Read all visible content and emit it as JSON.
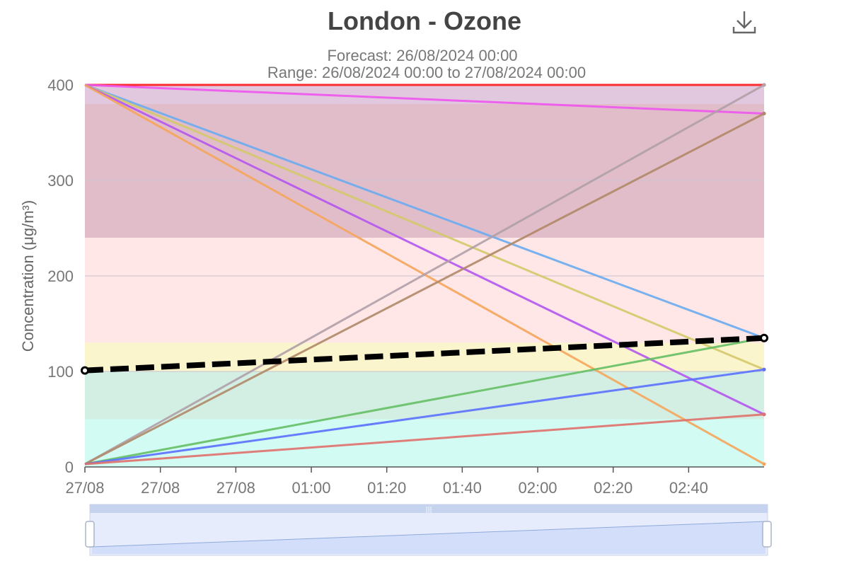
{
  "chart_data": {
    "type": "line",
    "title": "London - Ozone",
    "subtitle_lines": [
      "Forecast: 26/08/2024 00:00",
      "Range: 26/08/2024 00:00 to 27/08/2024 00:00"
    ],
    "ylabel": "Concentration (μg/m³)",
    "xlabel": "",
    "ylim": [
      0,
      400
    ],
    "yticks": [
      0,
      100,
      200,
      300,
      400
    ],
    "xticks": [
      "27/08",
      "27/08",
      "27/08",
      "01:00",
      "01:20",
      "01:40",
      "02:00",
      "02:20",
      "02:40"
    ],
    "x_range": [
      "27/08",
      "03:00"
    ],
    "grid": true,
    "legend": "none",
    "bands": [
      {
        "from": 0,
        "to": 50,
        "color": "#d2fbf3"
      },
      {
        "from": 50,
        "to": 100,
        "color": "#d3efe3"
      },
      {
        "from": 100,
        "to": 130,
        "color": "#fbf5cd"
      },
      {
        "from": 130,
        "to": 240,
        "color": "#ffe7e7"
      },
      {
        "from": 240,
        "to": 380,
        "color": "#e1bdca"
      },
      {
        "from": 380,
        "to": 400,
        "color": "#e2c8de"
      }
    ],
    "series": [
      {
        "values": [
          400,
          400
        ],
        "color": "#ff1a1a"
      },
      {
        "values": [
          400,
          370
        ],
        "color": "#ee55ee"
      },
      {
        "values": [
          400,
          135
        ],
        "color": "#6aabf0"
      },
      {
        "values": [
          400,
          102
        ],
        "color": "#d4c96a"
      },
      {
        "values": [
          400,
          55
        ],
        "color": "#b455f0"
      },
      {
        "values": [
          400,
          3
        ],
        "color": "#f5a55a"
      },
      {
        "values": [
          3,
          400
        ],
        "color": "#b0a0a8"
      },
      {
        "values": [
          3,
          370
        ],
        "color": "#b08868"
      },
      {
        "values": [
          3,
          135
        ],
        "color": "#65bf65"
      },
      {
        "values": [
          3,
          102
        ],
        "color": "#5a70ff"
      },
      {
        "values": [
          3,
          55
        ],
        "color": "#e0706a"
      },
      {
        "values": [
          101,
          135
        ],
        "color": "#000000",
        "dashed": true,
        "highlight": true
      }
    ]
  },
  "toolbar": {
    "download_icon": "download-icon"
  },
  "zoom_slider": {
    "start_fraction": 0,
    "end_fraction": 1
  }
}
